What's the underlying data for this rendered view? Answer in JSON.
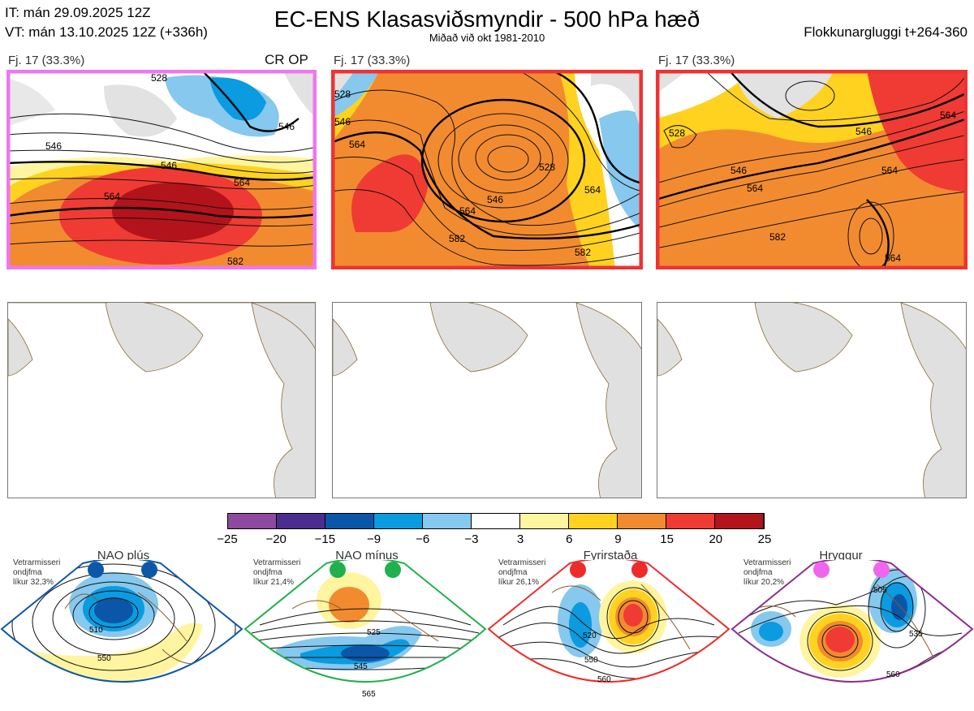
{
  "header": {
    "line1": "IT: mán 29.09.2025 12Z",
    "line2": "VT: mán 13.10.2025 12Z  (+336h)",
    "title": "EC-ENS Klasasviðsmyndir - 500 hPa hæð",
    "subtitle": "Miðað við okt 1981-2010",
    "window": "Flokkunargluggi t+264-360"
  },
  "panels": [
    {
      "label": "Fj. 17 (33.3%)",
      "tag": "CR OP",
      "border": "#ee77ee",
      "contour_labels": [
        "528",
        "546",
        "546",
        "564",
        "546",
        "564",
        "582"
      ]
    },
    {
      "label": "Fj. 17 (33.3%)",
      "tag": "",
      "border": "#ee3333",
      "contour_labels": [
        "528",
        "546",
        "564",
        "546",
        "564",
        "528",
        "564",
        "582",
        "582"
      ]
    },
    {
      "label": "Fj. 17 (33.3%)",
      "tag": "",
      "border": "#ee3333",
      "contour_labels": [
        "528",
        "546",
        "546",
        "564",
        "564",
        "564",
        "582",
        "564"
      ]
    }
  ],
  "colorbar": {
    "ticks": [
      "−25",
      "−20",
      "−15",
      "−9",
      "−6",
      "−3",
      "3",
      "6",
      "9",
      "15",
      "20",
      "25"
    ],
    "colors": [
      "#8e4a9e",
      "#4b2d8f",
      "#0b56a8",
      "#0a9be0",
      "#86c8ee",
      "#ffffff",
      "#fff5a0",
      "#ffd21f",
      "#f28b30",
      "#ef3b34",
      "#b3131b"
    ]
  },
  "regimes": [
    {
      "name": "NAO plús",
      "note": [
        "Vetrarmisseri",
        "ondjfma",
        "líkur 32,3%"
      ],
      "dot_color": "#0d57a8",
      "border": "#0d57a8",
      "labels": [
        "510",
        "550"
      ]
    },
    {
      "name": "NAO mínus",
      "note": [
        "Vetrarmisseri",
        "ondjfma",
        "líkur 21,4%"
      ],
      "dot_color": "#21b04b",
      "border": "#21b04b",
      "labels": [
        "525",
        "545",
        "565"
      ]
    },
    {
      "name": "Fyrirstaða",
      "note": [
        "Vetrarmisseri",
        "ondjfma",
        "líkur 26,1%"
      ],
      "dot_color": "#ee2b2b",
      "border": "#ee2b2b",
      "labels": [
        "520",
        "550",
        "560"
      ]
    },
    {
      "name": "Hryggur",
      "note": [
        "Vetrarmisseri",
        "ondjfma",
        "líkur 20,2%"
      ],
      "dot_color": "#ee66ee",
      "border": "#8a2e8e",
      "labels": [
        "505",
        "535",
        "560"
      ]
    }
  ]
}
